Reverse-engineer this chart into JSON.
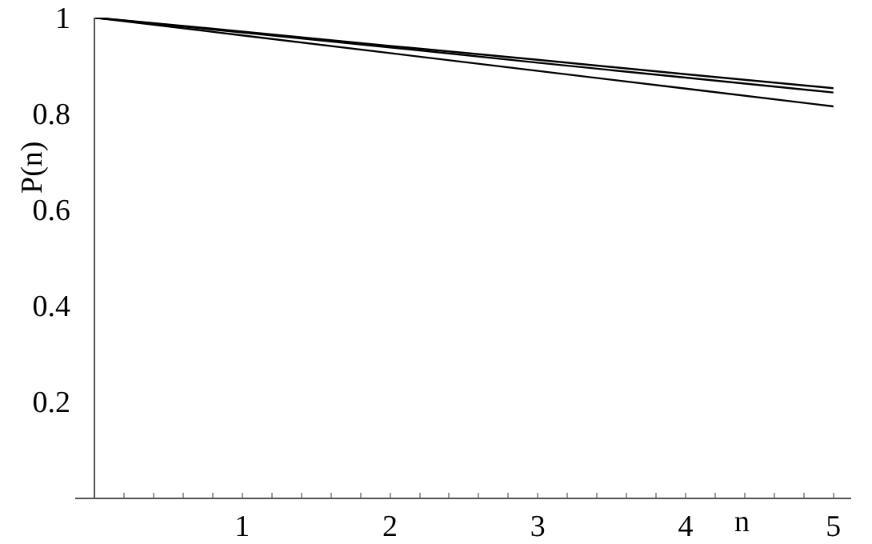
{
  "chart_data": {
    "type": "line",
    "xlabel": "n",
    "ylabel": "P(n)",
    "x": [
      0,
      1,
      2,
      3,
      4,
      5
    ],
    "series": [
      {
        "color": "#000000",
        "values": [
          1,
          0.971,
          0.941,
          0.912,
          0.882,
          0.853
        ]
      },
      {
        "color": "#000000",
        "values": [
          1,
          0.969,
          0.938,
          0.906,
          0.875,
          0.844
        ]
      },
      {
        "color": "#000000",
        "values": [
          1,
          0.963,
          0.926,
          0.889,
          0.852,
          0.815
        ]
      }
    ],
    "xlim": [
      -0.13,
      5.12
    ],
    "ylim": [
      0,
      1
    ],
    "xticks": [
      1,
      2,
      3,
      4,
      5
    ],
    "yticks": [
      0.2,
      0.4,
      0.6,
      0.8,
      1
    ],
    "marker": "none",
    "line_style": "solid"
  }
}
